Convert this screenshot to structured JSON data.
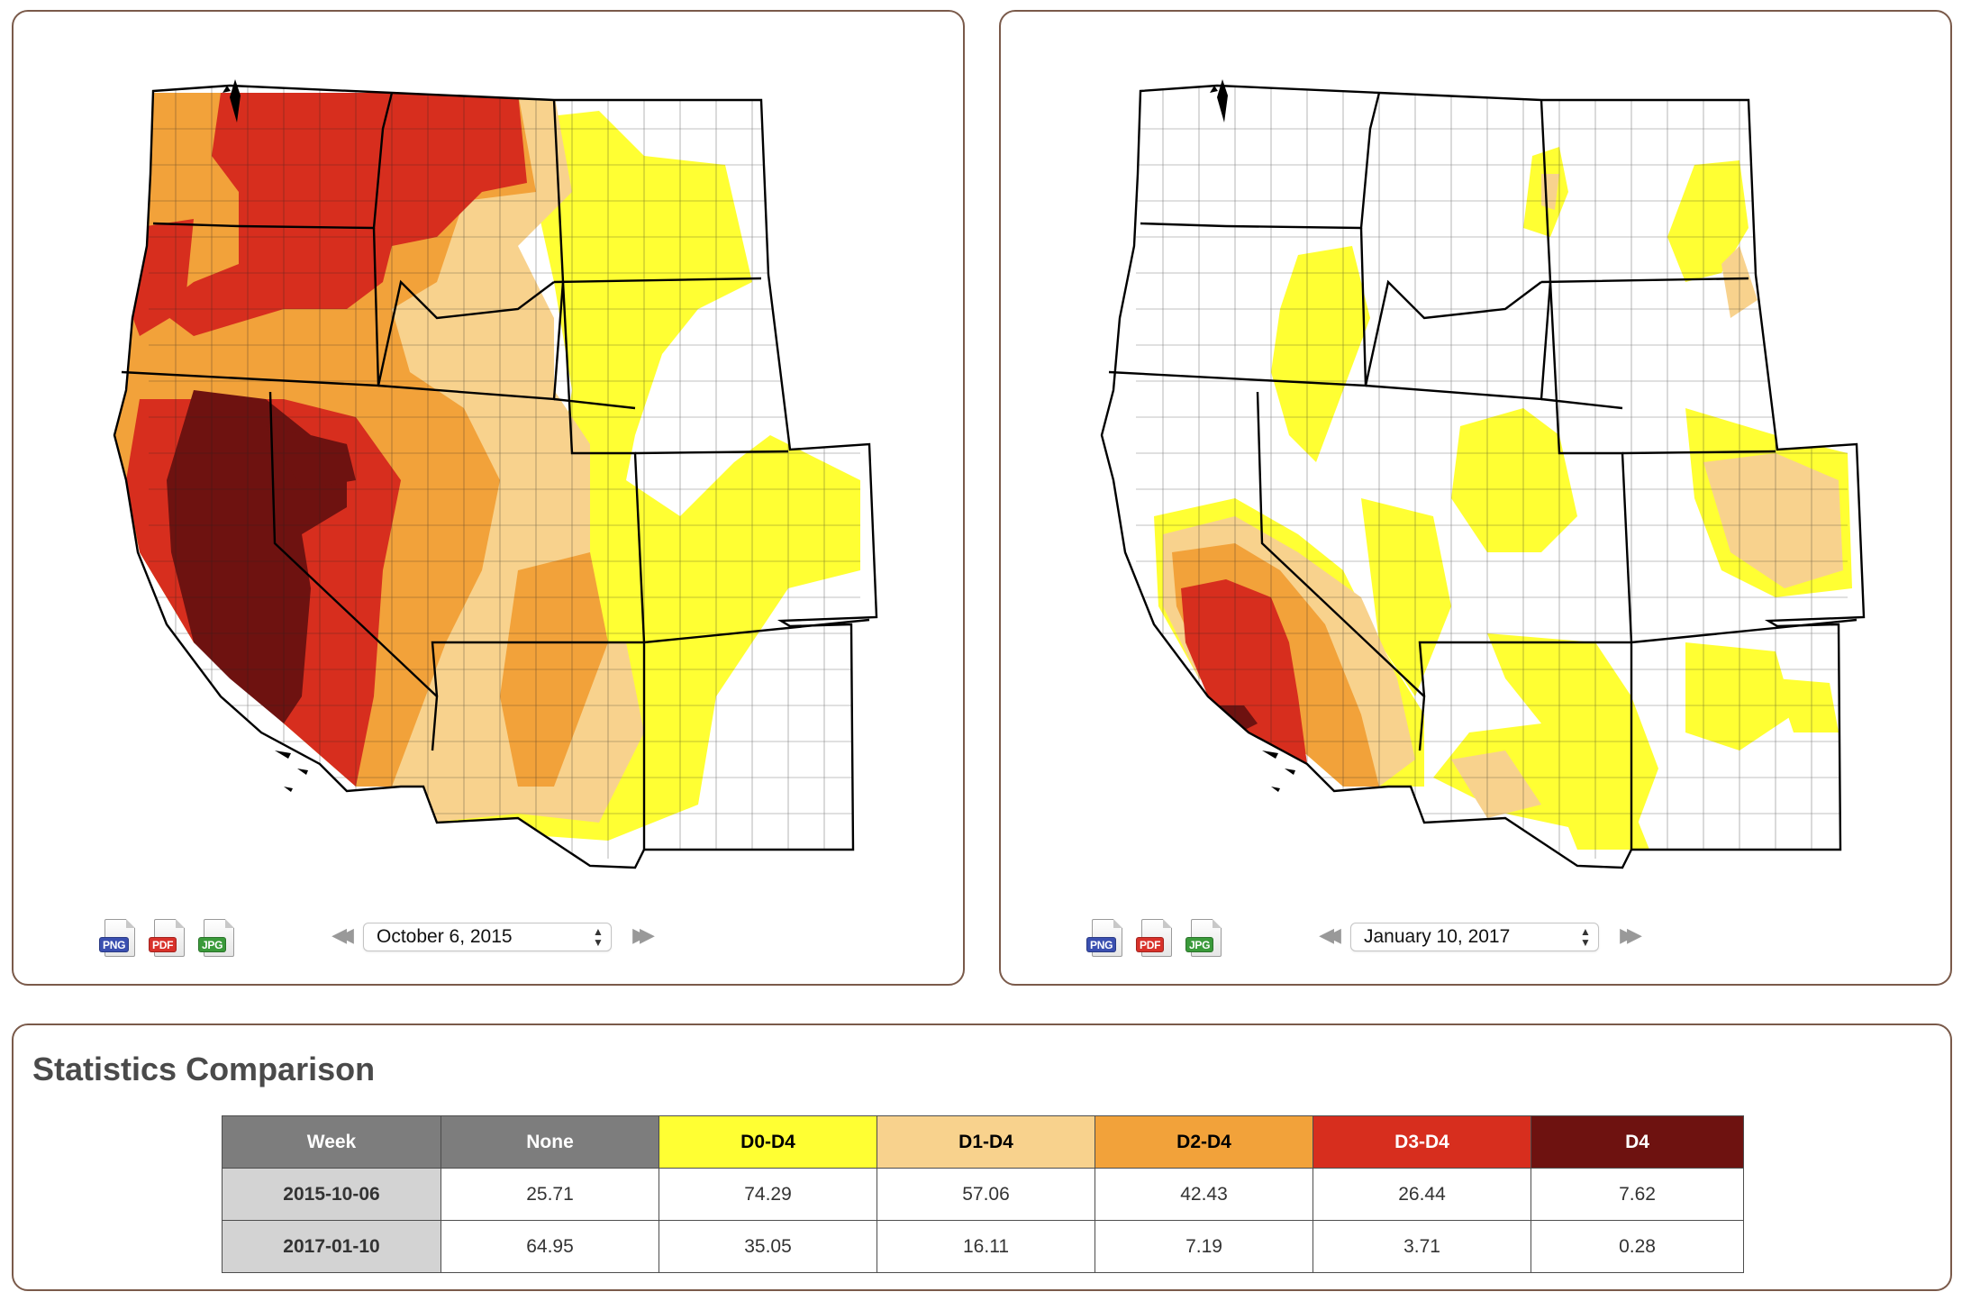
{
  "left_panel": {
    "date": "October 6, 2015",
    "downloads": [
      {
        "label": "PNG",
        "color": "#3a4fb0",
        "icon": "png-file-icon"
      },
      {
        "label": "PDF",
        "color": "#d8312a",
        "icon": "pdf-file-icon"
      },
      {
        "label": "JPG",
        "color": "#3a9a3a",
        "icon": "jpg-file-icon"
      }
    ],
    "prev_icon": "rewind-icon",
    "next_icon": "fast-forward-icon"
  },
  "right_panel": {
    "date": "January 10, 2017",
    "downloads": [
      {
        "label": "PNG",
        "color": "#3a4fb0",
        "icon": "png-file-icon"
      },
      {
        "label": "PDF",
        "color": "#d8312a",
        "icon": "pdf-file-icon"
      },
      {
        "label": "JPG",
        "color": "#3a9a3a",
        "icon": "jpg-file-icon"
      }
    ],
    "prev_icon": "rewind-icon",
    "next_icon": "fast-forward-icon"
  },
  "colors": {
    "none": "#ffffff",
    "d0": "#ffff33",
    "d1": "#f8d28d",
    "d2": "#f2a23a",
    "d3": "#d72e1e",
    "d4": "#6e1210",
    "border": "#7a5a4a"
  },
  "statistics": {
    "title": "Statistics Comparison",
    "headers": [
      {
        "label": "Week",
        "bg": "#7d7d7d",
        "fg": "#ffffff"
      },
      {
        "label": "None",
        "bg": "#7d7d7d",
        "fg": "#ffffff"
      },
      {
        "label": "D0-D4",
        "bg": "#ffff33",
        "fg": "#000000"
      },
      {
        "label": "D1-D4",
        "bg": "#f8d28d",
        "fg": "#000000"
      },
      {
        "label": "D2-D4",
        "bg": "#f2a23a",
        "fg": "#000000"
      },
      {
        "label": "D3-D4",
        "bg": "#d72e1e",
        "fg": "#ffffff"
      },
      {
        "label": "D4",
        "bg": "#6e1210",
        "fg": "#ffffff"
      }
    ],
    "rows": [
      {
        "week": "2015-10-06",
        "values": [
          "25.71",
          "74.29",
          "57.06",
          "42.43",
          "26.44",
          "7.62"
        ]
      },
      {
        "week": "2017-01-10",
        "values": [
          "64.95",
          "35.05",
          "16.11",
          "7.19",
          "3.71",
          "0.28"
        ]
      }
    ]
  }
}
